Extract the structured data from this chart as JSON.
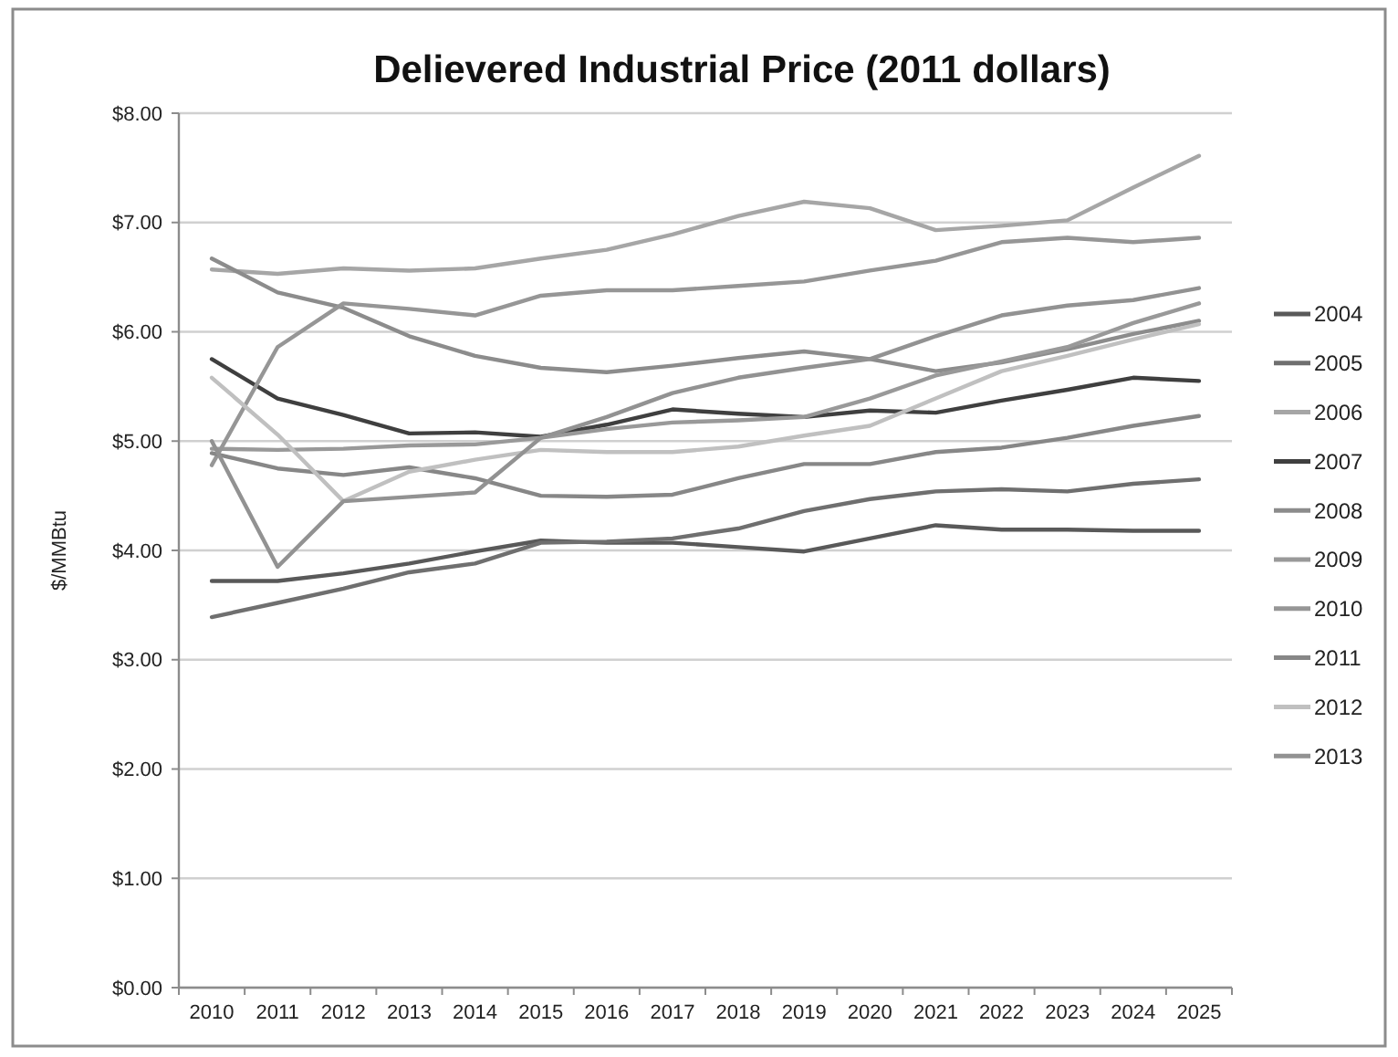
{
  "chart_data": {
    "type": "line",
    "title": "Delievered Industrial Price (2011 dollars)",
    "ylabel": "$/MMBtu",
    "categories": [
      "2010",
      "2011",
      "2012",
      "2013",
      "2014",
      "2015",
      "2016",
      "2017",
      "2018",
      "2019",
      "2020",
      "2021",
      "2022",
      "2023",
      "2024",
      "2025"
    ],
    "ylim": [
      0,
      8
    ],
    "yticks": [
      {
        "value": 0,
        "label": "$0.00"
      },
      {
        "value": 1,
        "label": "$1.00"
      },
      {
        "value": 2,
        "label": "$2.00"
      },
      {
        "value": 3,
        "label": "$3.00"
      },
      {
        "value": 4,
        "label": "$4.00"
      },
      {
        "value": 5,
        "label": "$5.00"
      },
      {
        "value": 6,
        "label": "$6.00"
      },
      {
        "value": 7,
        "label": "$7.00"
      },
      {
        "value": 8,
        "label": "$8.00"
      }
    ],
    "grid": "y",
    "legend": "right",
    "marker": "none",
    "line_style": "solid",
    "series": [
      {
        "name": "2004",
        "color": "#595959",
        "values": [
          3.72,
          3.72,
          3.79,
          3.88,
          3.99,
          4.09,
          4.07,
          4.07,
          4.03,
          3.99,
          4.11,
          4.23,
          4.19,
          4.19,
          4.18,
          4.18
        ]
      },
      {
        "name": "2005",
        "color": "#6f6f6f",
        "values": [
          3.39,
          3.52,
          3.65,
          3.8,
          3.88,
          4.07,
          4.08,
          4.11,
          4.2,
          4.36,
          4.47,
          4.54,
          4.56,
          4.54,
          4.61,
          4.65
        ]
      },
      {
        "name": "2006",
        "color": "#a6a6a6",
        "values": [
          6.57,
          6.53,
          6.58,
          6.56,
          6.58,
          6.67,
          6.75,
          6.89,
          7.06,
          7.19,
          7.13,
          6.93,
          6.97,
          7.02,
          7.32,
          7.61
        ]
      },
      {
        "name": "2007",
        "color": "#3f3f3f",
        "values": [
          5.75,
          5.39,
          5.24,
          5.07,
          5.08,
          5.04,
          5.15,
          5.29,
          5.25,
          5.22,
          5.28,
          5.26,
          5.37,
          5.47,
          5.58,
          5.55
        ]
      },
      {
        "name": "2008",
        "color": "#8c8c8c",
        "values": [
          6.67,
          6.36,
          6.22,
          5.96,
          5.78,
          5.67,
          5.63,
          5.69,
          5.76,
          5.82,
          5.75,
          5.64,
          5.72,
          5.84,
          5.98,
          6.1
        ]
      },
      {
        "name": "2009",
        "color": "#999999",
        "values": [
          4.93,
          4.92,
          4.93,
          4.96,
          4.97,
          5.03,
          5.11,
          5.17,
          5.19,
          5.22,
          5.39,
          5.6,
          5.73,
          5.86,
          6.08,
          6.26
        ]
      },
      {
        "name": "2010",
        "color": "#969696",
        "values": [
          4.78,
          5.86,
          6.26,
          6.21,
          6.15,
          6.33,
          6.38,
          6.38,
          6.42,
          6.46,
          6.56,
          6.65,
          6.82,
          6.86,
          6.82,
          6.86
        ]
      },
      {
        "name": "2011",
        "color": "#878787",
        "values": [
          4.89,
          4.75,
          4.69,
          4.76,
          4.66,
          4.5,
          4.49,
          4.51,
          4.66,
          4.79,
          4.79,
          4.9,
          4.94,
          5.03,
          5.14,
          5.23
        ]
      },
      {
        "name": "2012",
        "color": "#c0c0c0",
        "values": [
          5.58,
          5.06,
          4.45,
          4.72,
          4.83,
          4.92,
          4.9,
          4.9,
          4.95,
          5.05,
          5.14,
          5.39,
          5.64,
          5.78,
          5.93,
          6.07
        ]
      },
      {
        "name": "2013",
        "color": "#929292",
        "values": [
          5.0,
          3.85,
          4.45,
          4.49,
          4.53,
          5.03,
          5.22,
          5.44,
          5.58,
          5.67,
          5.75,
          5.96,
          6.15,
          6.24,
          6.29,
          6.4
        ]
      }
    ]
  }
}
